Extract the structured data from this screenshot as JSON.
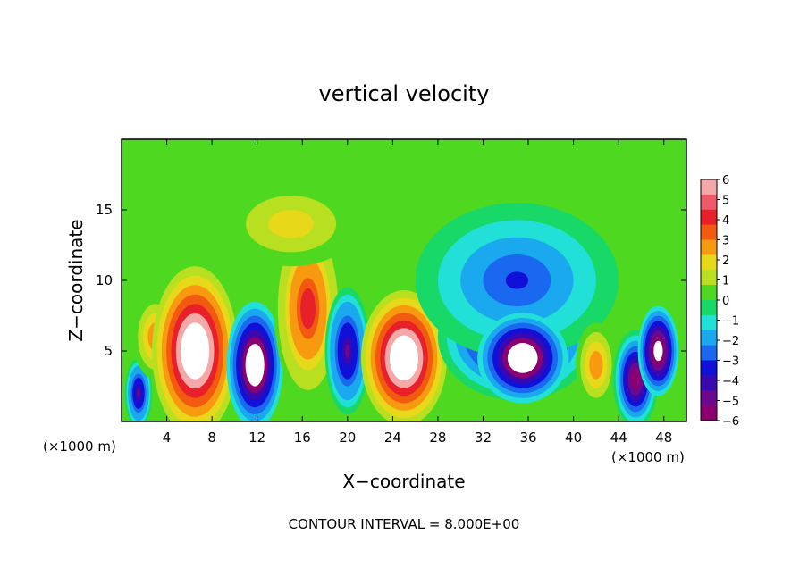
{
  "chart_data": {
    "type": "heatmap",
    "title": "vertical velocity",
    "xlabel": "X−coordinate",
    "ylabel": "Z−coordinate",
    "x_unit": "(×1000 m)",
    "x_unit_right": "(×1000 m)",
    "footer": "CONTOUR INTERVAL = 8.000E+00",
    "xlim": [
      0,
      50
    ],
    "ylim": [
      0,
      20
    ],
    "x_ticks": [
      4,
      8,
      12,
      16,
      20,
      24,
      28,
      32,
      36,
      40,
      44,
      48
    ],
    "x_tick_labels": [
      "4",
      "8",
      "12",
      "16",
      "20",
      "24",
      "28",
      "32",
      "36",
      "40",
      "44",
      "48"
    ],
    "y_ticks": [
      5,
      10,
      15
    ],
    "y_tick_labels": [
      "5",
      "10",
      "15"
    ],
    "colorbar": {
      "min": -6,
      "max": 6,
      "tick_labels": [
        "6",
        "5",
        "4",
        "3",
        "2",
        "1",
        "0",
        "−1",
        "−2",
        "−3",
        "−4",
        "−5",
        "−6"
      ],
      "colors": [
        "#f4a8a8",
        "#ef5a6a",
        "#e8202a",
        "#f25a10",
        "#f79a10",
        "#e8d81a",
        "#b8e020",
        "#4ed820",
        "#18d868",
        "#20e0d8",
        "#1aa8ee",
        "#1a68f0",
        "#1010d8",
        "#3a08b0",
        "#6a0890",
        "#8a0070"
      ]
    },
    "cells": [
      {
        "x": 1.5,
        "z": 2.0,
        "v": -4.5,
        "rx": 1.2,
        "rz": 2.5
      },
      {
        "x": 3.0,
        "z": 6.0,
        "v": 3.0,
        "rx": 2.0,
        "rz": 3.0
      },
      {
        "x": 6.5,
        "z": 5.0,
        "v": 8.0,
        "rx": 3.8,
        "rz": 6.0
      },
      {
        "x": 11.8,
        "z": 4.0,
        "v": -8.0,
        "rx": 2.5,
        "rz": 4.5
      },
      {
        "x": 16.5,
        "z": 8.0,
        "v": 4.5,
        "rx": 3.0,
        "rz": 6.5
      },
      {
        "x": 20.0,
        "z": 5.0,
        "v": -4.5,
        "rx": 2.0,
        "rz": 4.5
      },
      {
        "x": 25.0,
        "z": 4.5,
        "v": 8.0,
        "rx": 3.8,
        "rz": 4.8
      },
      {
        "x": 35.0,
        "z": 6.0,
        "v": -6.5,
        "rx": 7.0,
        "rz": 4.5
      },
      {
        "x": 35.0,
        "z": 10.0,
        "v": -3.0,
        "rx": 9.0,
        "rz": 5.5
      },
      {
        "x": 35.5,
        "z": 4.5,
        "v": -8.0,
        "rx": 4.0,
        "rz": 3.2
      },
      {
        "x": 42.0,
        "z": 4.0,
        "v": 3.0,
        "rx": 1.8,
        "rz": 3.0
      },
      {
        "x": 45.5,
        "z": 3.0,
        "v": -6.0,
        "rx": 2.0,
        "rz": 3.5
      },
      {
        "x": 47.5,
        "z": 5.0,
        "v": -7.0,
        "rx": 1.8,
        "rz": 3.2
      },
      {
        "x": 15.0,
        "z": 14.0,
        "v": 2.0,
        "rx": 6.0,
        "rz": 3.0
      }
    ]
  }
}
